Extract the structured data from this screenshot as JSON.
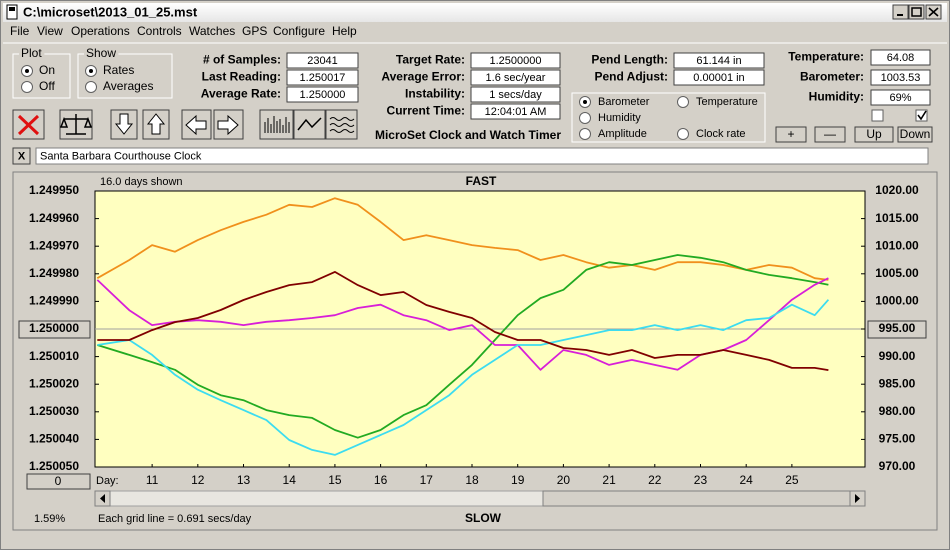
{
  "window": {
    "title": "C:\\microset\\2013_01_25.mst"
  },
  "menu": [
    "File",
    "View",
    "Operations",
    "Controls",
    "Watches",
    "GPS",
    "Configure",
    "Help"
  ],
  "plot_group": {
    "label": "Plot",
    "options": [
      "On",
      "Off"
    ]
  },
  "show_group": {
    "label": "Show",
    "options": [
      "Rates",
      "Averages"
    ]
  },
  "fields": [
    [
      {
        "label": "# of Samples:",
        "value": "23041"
      },
      {
        "label": "Last Reading:",
        "value": "1.250017"
      },
      {
        "label": "Average Rate:",
        "value": "1.250000"
      }
    ],
    [
      {
        "label": "Target Rate:",
        "value": "1.2500000"
      },
      {
        "label": "Average Error:",
        "value": "1.6 sec/year"
      },
      {
        "label": "Instability:",
        "value": "1 secs/day"
      },
      {
        "label": "Current Time:",
        "value": "12:04:01 AM"
      }
    ],
    [
      {
        "label": "Pend Length:",
        "value": "61.144 in"
      },
      {
        "label": "Pend Adjust:",
        "value": "0.00001 in"
      }
    ],
    [
      {
        "label": "Temperature:",
        "value": "64.08"
      },
      {
        "label": "Barometer:",
        "value": "1003.53"
      },
      {
        "label": "Humidity:",
        "value": "69%"
      }
    ]
  ],
  "app_name": "MicroSet Clock and Watch Timer",
  "sensor_buttons": [
    "+",
    "—",
    "Up",
    "Down"
  ],
  "close_label": "X",
  "clock_name": "Santa Barbara Courthouse Clock",
  "chart_data": {
    "type": "line",
    "top_label": "FAST",
    "bottom_label": "SLOW",
    "days_shown": "16.0 days shown",
    "x_label": "Day:",
    "footnote": "Each grid line = 0.691 secs/day",
    "status": "1.59%",
    "scroll_label": "0",
    "x": [
      9.8,
      10.5,
      11,
      11.5,
      12,
      12.5,
      13,
      13.5,
      14,
      14.5,
      15,
      15.5,
      16,
      16.5,
      17,
      17.5,
      18,
      18.5,
      19,
      19.5,
      20,
      20.5,
      21,
      21.5,
      22,
      22.5,
      23,
      23.5,
      24,
      24.5,
      25,
      25.5,
      25.8
    ],
    "xlim": [
      9.75,
      26.6
    ],
    "xticks": [
      11,
      12,
      13,
      14,
      15,
      16,
      17,
      18,
      19,
      20,
      21,
      22,
      23,
      24,
      25
    ],
    "ylim": [
      1.25005,
      1.24995
    ],
    "yticks": [
      {
        "value": 1.24995,
        "label": "1.249950"
      },
      {
        "value": 1.24996,
        "label": "1.249960"
      },
      {
        "value": 1.24997,
        "label": "1.249970"
      },
      {
        "value": 1.24998,
        "label": "1.249980"
      },
      {
        "value": 1.24999,
        "label": "1.249990"
      },
      {
        "value": 1.25,
        "label": "1.250000"
      },
      {
        "value": 1.25001,
        "label": "1.250010"
      },
      {
        "value": 1.25002,
        "label": "1.250020"
      },
      {
        "value": 1.25003,
        "label": "1.250030"
      },
      {
        "value": 1.25004,
        "label": "1.250040"
      },
      {
        "value": 1.25005,
        "label": "1.250050"
      }
    ],
    "y2lim": [
      970,
      1020
    ],
    "y2ticks": [
      {
        "value": 1020,
        "label": "1020.00"
      },
      {
        "value": 1015,
        "label": "1015.00"
      },
      {
        "value": 1010,
        "label": "1010.00"
      },
      {
        "value": 1005,
        "label": "1005.00"
      },
      {
        "value": 1000,
        "label": "1000.00"
      },
      {
        "value": 995,
        "label": "995.00"
      },
      {
        "value": 990,
        "label": "990.00"
      },
      {
        "value": 985,
        "label": "985.00"
      },
      {
        "value": 980,
        "label": "980.00"
      },
      {
        "value": 975,
        "label": "975.00"
      },
      {
        "value": 970,
        "label": "970.00"
      }
    ],
    "grid": false,
    "series": [
      {
        "name": "Barometer",
        "color": "#f0901c",
        "axis": "y2",
        "values": [
          1004.2,
          1007.5,
          1010.2,
          1009.0,
          1011.1,
          1012.9,
          1014.4,
          1015.7,
          1017.5,
          1017.1,
          1018.7,
          1017.5,
          1014.4,
          1011.1,
          1012.0,
          1011.1,
          1010.2,
          1009.7,
          1009.3,
          1007.5,
          1008.4,
          1007.1,
          1006.1,
          1006.6,
          1005.7,
          1007.1,
          1007.1,
          1006.6,
          1005.7,
          1006.6,
          1006.1,
          1004.2,
          1003.9
        ]
      },
      {
        "name": "Temperature",
        "color": "#22aa22",
        "axis": "y2",
        "values": [
          992.1,
          990.3,
          989.0,
          987.6,
          984.9,
          983.0,
          982.1,
          980.3,
          979.4,
          978.9,
          976.7,
          975.3,
          976.7,
          979.4,
          981.2,
          984.9,
          988.5,
          993.0,
          997.5,
          1000.6,
          1002.1,
          1005.7,
          1007.1,
          1006.6,
          1007.5,
          1008.4,
          1007.9,
          1007.1,
          1005.7,
          1004.8,
          1004.2,
          1003.5,
          1003.0
        ]
      },
      {
        "name": "Humidity",
        "color": "#d81ed8",
        "axis": "y2",
        "values": [
          1003.9,
          998.4,
          995.7,
          996.3,
          996.6,
          996.3,
          995.7,
          996.3,
          996.6,
          997.0,
          997.5,
          998.8,
          999.4,
          997.5,
          996.6,
          994.8,
          995.7,
          992.1,
          992.1,
          987.6,
          991.2,
          990.3,
          988.5,
          989.4,
          988.5,
          987.6,
          990.3,
          991.2,
          993.0,
          996.6,
          1000.3,
          1003.0,
          1004.2
        ]
      },
      {
        "name": "Amplitude",
        "color": "#3cdcf0",
        "axis": "y2",
        "values": [
          992.1,
          993.0,
          990.3,
          986.7,
          984.0,
          982.1,
          980.3,
          978.5,
          974.9,
          973.1,
          972.2,
          974.0,
          975.8,
          977.6,
          980.3,
          983.0,
          986.7,
          989.4,
          992.1,
          992.1,
          993.0,
          993.9,
          994.8,
          994.8,
          995.7,
          994.8,
          995.7,
          994.8,
          996.6,
          997.0,
          999.4,
          997.5,
          1000.3
        ]
      },
      {
        "name": "Clock rate",
        "color": "#800000",
        "values": [
          1.250004,
          1.250004,
          1.2500004,
          1.2499975,
          1.249996,
          1.2499931,
          1.2499895,
          1.2499866,
          1.2499841,
          1.249983,
          1.2499793,
          1.2499841,
          1.2499877,
          1.2499866,
          1.2499913,
          1.2499938,
          1.249996,
          1.2500011,
          1.250004,
          1.250004,
          1.2500069,
          1.2500076,
          1.2500094,
          1.2500076,
          1.2500105,
          1.2500094,
          1.2500094,
          1.2500076,
          1.2500094,
          1.2500112,
          1.2500141,
          1.2500141,
          1.2500149
        ]
      }
    ]
  }
}
